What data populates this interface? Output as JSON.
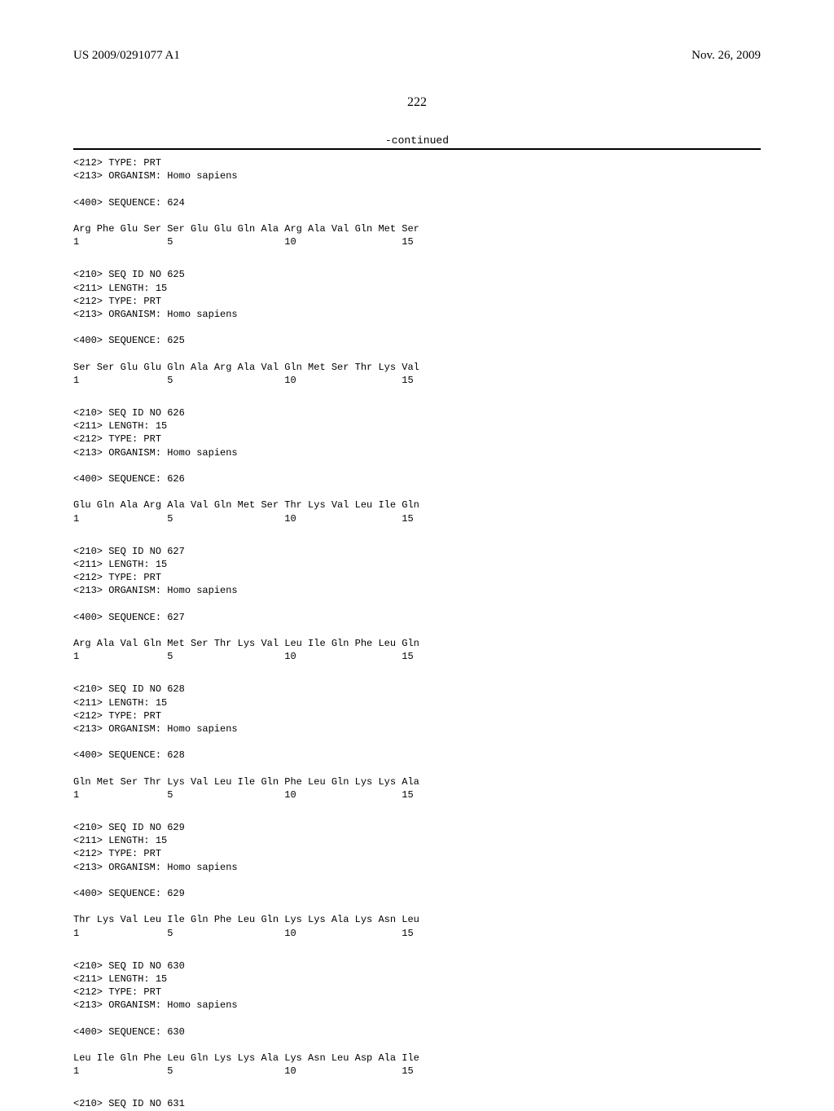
{
  "header": {
    "left": "US 2009/0291077 A1",
    "right": "Nov. 26, 2009"
  },
  "page_number": "222",
  "continued_label": "-continued",
  "blocks": [
    {
      "lines": [
        "<212> TYPE: PRT",
        "<213> ORGANISM: Homo sapiens",
        "",
        "<400> SEQUENCE: 624",
        "",
        "Arg Phe Glu Ser Ser Glu Glu Gln Ala Arg Ala Val Gln Met Ser",
        "1               5                   10                  15"
      ]
    },
    {
      "lines": [
        "<210> SEQ ID NO 625",
        "<211> LENGTH: 15",
        "<212> TYPE: PRT",
        "<213> ORGANISM: Homo sapiens",
        "",
        "<400> SEQUENCE: 625",
        "",
        "Ser Ser Glu Glu Gln Ala Arg Ala Val Gln Met Ser Thr Lys Val",
        "1               5                   10                  15"
      ]
    },
    {
      "lines": [
        "<210> SEQ ID NO 626",
        "<211> LENGTH: 15",
        "<212> TYPE: PRT",
        "<213> ORGANISM: Homo sapiens",
        "",
        "<400> SEQUENCE: 626",
        "",
        "Glu Gln Ala Arg Ala Val Gln Met Ser Thr Lys Val Leu Ile Gln",
        "1               5                   10                  15"
      ]
    },
    {
      "lines": [
        "<210> SEQ ID NO 627",
        "<211> LENGTH: 15",
        "<212> TYPE: PRT",
        "<213> ORGANISM: Homo sapiens",
        "",
        "<400> SEQUENCE: 627",
        "",
        "Arg Ala Val Gln Met Ser Thr Lys Val Leu Ile Gln Phe Leu Gln",
        "1               5                   10                  15"
      ]
    },
    {
      "lines": [
        "<210> SEQ ID NO 628",
        "<211> LENGTH: 15",
        "<212> TYPE: PRT",
        "<213> ORGANISM: Homo sapiens",
        "",
        "<400> SEQUENCE: 628",
        "",
        "Gln Met Ser Thr Lys Val Leu Ile Gln Phe Leu Gln Lys Lys Ala",
        "1               5                   10                  15"
      ]
    },
    {
      "lines": [
        "<210> SEQ ID NO 629",
        "<211> LENGTH: 15",
        "<212> TYPE: PRT",
        "<213> ORGANISM: Homo sapiens",
        "",
        "<400> SEQUENCE: 629",
        "",
        "Thr Lys Val Leu Ile Gln Phe Leu Gln Lys Lys Ala Lys Asn Leu",
        "1               5                   10                  15"
      ]
    },
    {
      "lines": [
        "<210> SEQ ID NO 630",
        "<211> LENGTH: 15",
        "<212> TYPE: PRT",
        "<213> ORGANISM: Homo sapiens",
        "",
        "<400> SEQUENCE: 630",
        "",
        "Leu Ile Gln Phe Leu Gln Lys Lys Ala Lys Asn Leu Asp Ala Ile",
        "1               5                   10                  15"
      ]
    },
    {
      "lines": [
        "<210> SEQ ID NO 631"
      ]
    }
  ]
}
